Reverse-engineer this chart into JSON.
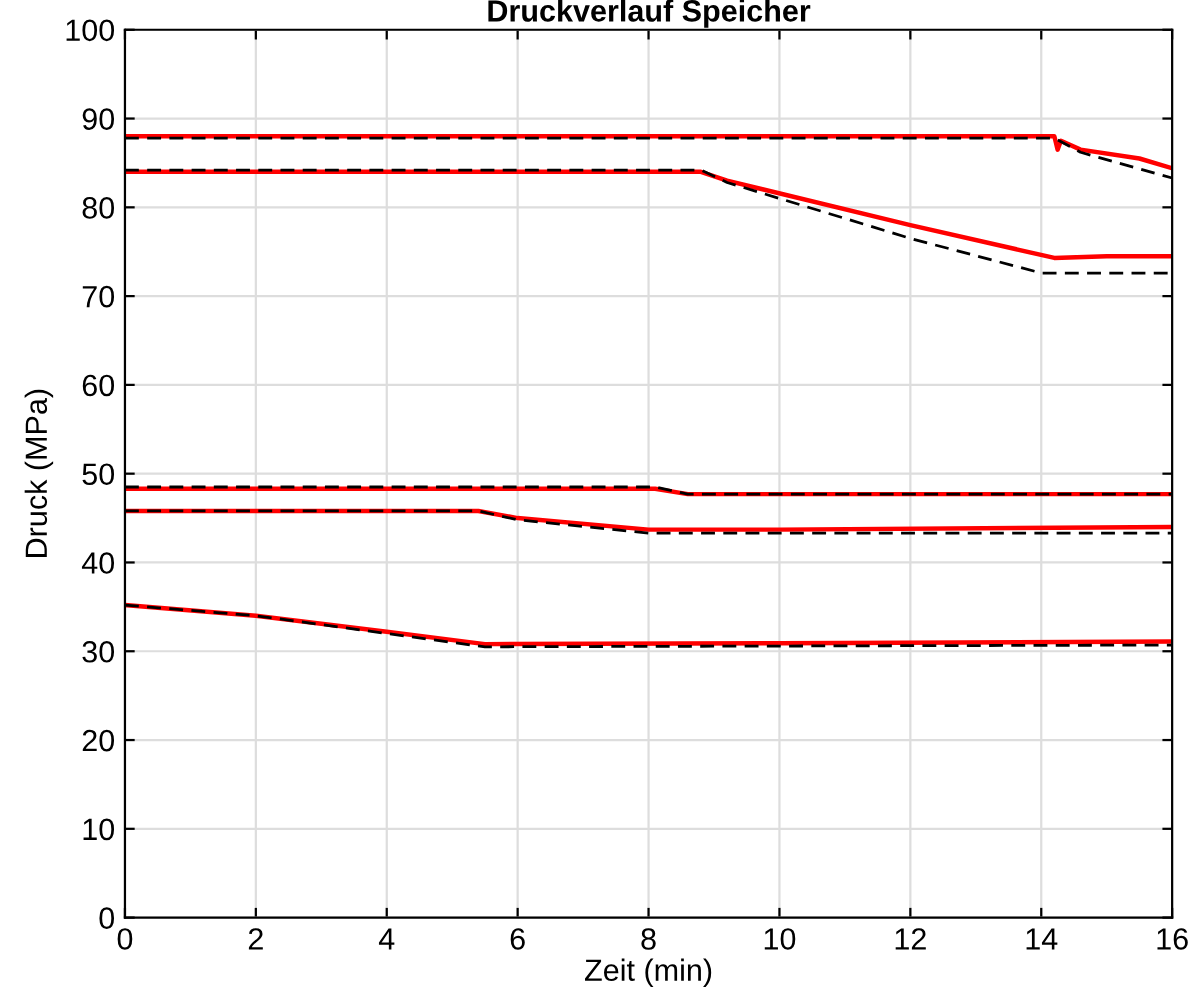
{
  "chart_data": {
    "type": "line",
    "title": "Druckverlauf Speicher",
    "xlabel": "Zeit (min)",
    "ylabel": "Druck (MPa)",
    "xlim": [
      0,
      16
    ],
    "ylim": [
      0,
      100
    ],
    "xticks": [
      0,
      2,
      4,
      6,
      8,
      10,
      12,
      14,
      16
    ],
    "yticks": [
      0,
      10,
      20,
      30,
      40,
      50,
      60,
      70,
      80,
      90,
      100
    ],
    "grid": true,
    "legend": false,
    "series": [
      {
        "color": "#ff0000",
        "line_style": "solid",
        "x": [
          0,
          14.2,
          14.25,
          14.3,
          14.6,
          15.5,
          16
        ],
        "values": [
          88,
          88,
          86.5,
          87.5,
          86.5,
          85.5,
          84.4
        ]
      },
      {
        "color": "#000000",
        "line_style": "dashed",
        "x": [
          0,
          14.2,
          14.6,
          16
        ],
        "values": [
          87.8,
          87.8,
          86.2,
          83.3
        ]
      },
      {
        "color": "#ff0000",
        "line_style": "solid",
        "x": [
          0,
          8.8,
          9.2,
          12,
          14.2,
          15,
          16
        ],
        "values": [
          84,
          84,
          83,
          78,
          74.3,
          74.5,
          74.5
        ]
      },
      {
        "color": "#000000",
        "line_style": "dashed",
        "x": [
          0,
          8.8,
          9.2,
          12,
          14,
          16
        ],
        "values": [
          84.2,
          84.2,
          82.8,
          76.5,
          72.6,
          72.6
        ]
      },
      {
        "color": "#ff0000",
        "line_style": "solid",
        "x": [
          0,
          8.1,
          8.6,
          16
        ],
        "values": [
          48.3,
          48.3,
          47.7,
          47.7
        ]
      },
      {
        "color": "#000000",
        "line_style": "dashed",
        "x": [
          0,
          8.1,
          8.6,
          16
        ],
        "values": [
          48.5,
          48.5,
          47.7,
          47.7
        ]
      },
      {
        "color": "#ff0000",
        "line_style": "solid",
        "x": [
          0,
          5.4,
          6,
          8,
          10,
          16
        ],
        "values": [
          45.8,
          45.8,
          45,
          43.7,
          43.7,
          44
        ]
      },
      {
        "color": "#000000",
        "line_style": "dashed",
        "x": [
          0,
          5.4,
          6,
          8,
          16
        ],
        "values": [
          45.8,
          45.8,
          44.8,
          43.3,
          43.3
        ]
      },
      {
        "color": "#ff0000",
        "line_style": "solid",
        "x": [
          0,
          2,
          4,
          5.5,
          10,
          16
        ],
        "values": [
          35.2,
          34,
          32.2,
          30.8,
          30.9,
          31.1
        ]
      },
      {
        "color": "#000000",
        "line_style": "dashed",
        "x": [
          0,
          2,
          4,
          5.5,
          16
        ],
        "values": [
          35.2,
          34,
          32,
          30.5,
          30.7
        ]
      }
    ]
  }
}
